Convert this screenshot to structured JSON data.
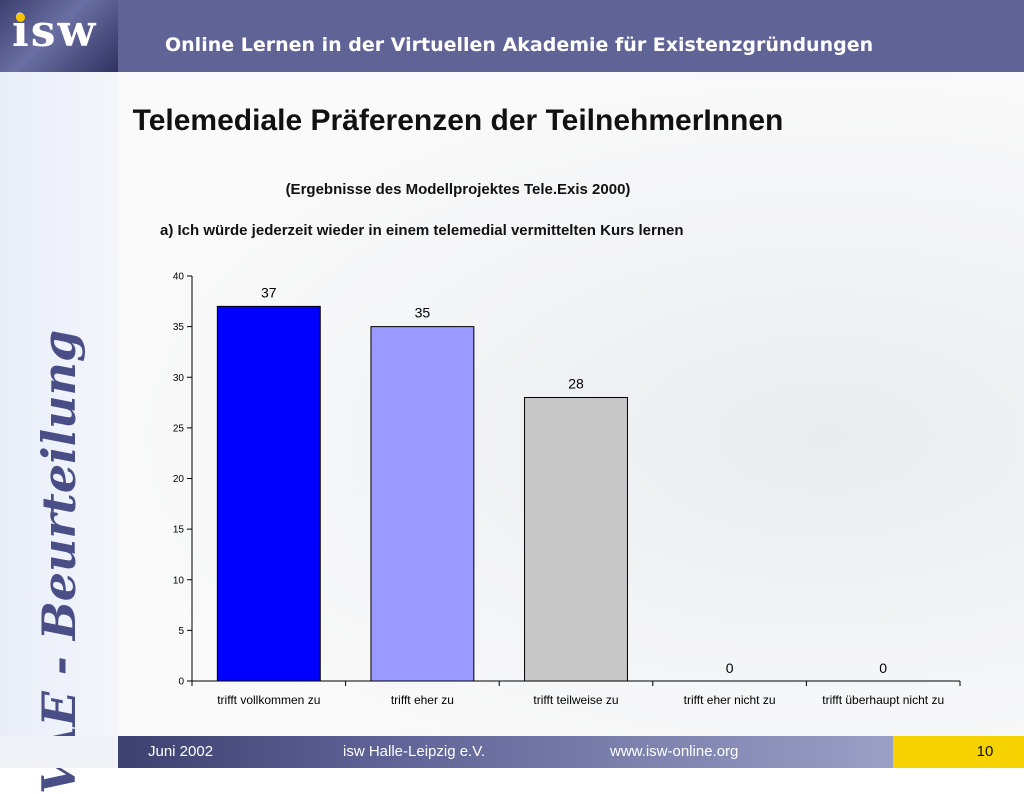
{
  "header": {
    "logo_text": "isw",
    "title": "Online Lernen in der Virtuellen Akademie für Existenzgründungen"
  },
  "sidebar": {
    "vertical_text": "VAE - Beurteilung"
  },
  "slide": {
    "title": "Telemediale Präferenzen der TeilnehmerInnen",
    "subtitle": "(Ergebnisse des Modellprojektes Tele.Exis 2000)",
    "question": "a) Ich würde jederzeit wieder in einem telemedial vermittelten Kurs lernen"
  },
  "chart_data": {
    "type": "bar",
    "categories": [
      "trifft vollkommen zu",
      "trifft eher zu",
      "trifft teilweise zu",
      "trifft eher nicht zu",
      "trifft überhaupt nicht zu"
    ],
    "values": [
      37,
      35,
      28,
      0,
      0
    ],
    "bar_colors": [
      "#0000ff",
      "#9999ff",
      "#c8c8c8",
      "#c8c8c8",
      "#c8c8c8"
    ],
    "ylim": [
      0,
      40
    ],
    "yticks": [
      0,
      5,
      10,
      15,
      20,
      25,
      30,
      35,
      40
    ],
    "data_labels": true,
    "grid": false,
    "legend": "none",
    "title": "",
    "xlabel": "",
    "ylabel": ""
  },
  "footer": {
    "date": "Juni 2002",
    "org": "isw Halle-Leipzig e.V.",
    "url": "www.isw-online.org",
    "page": "10"
  }
}
